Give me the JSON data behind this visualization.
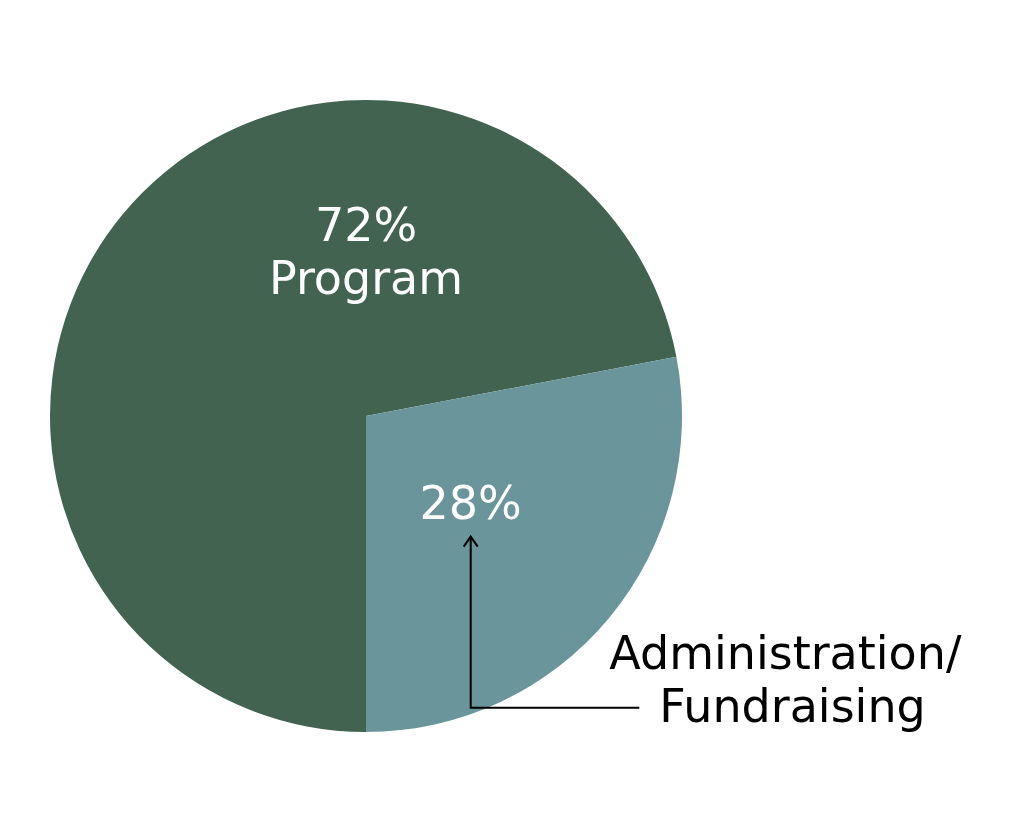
{
  "chart_data": {
    "type": "pie",
    "categories": [
      "Program",
      "Administration/Fundraising"
    ],
    "values": [
      72,
      28
    ],
    "value_labels": [
      "72%",
      "28%"
    ],
    "colors": [
      "#41634f",
      "#6a959a"
    ]
  }
}
